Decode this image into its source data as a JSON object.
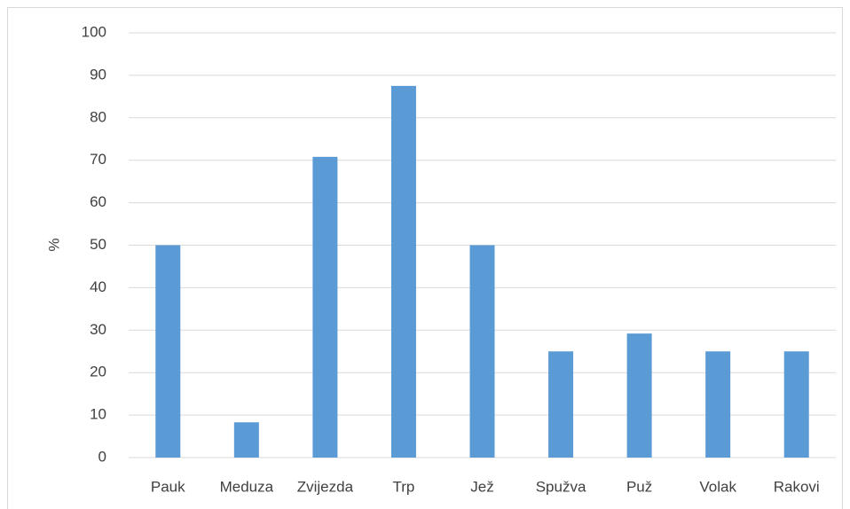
{
  "chart_data": {
    "type": "bar",
    "ylabel": "%",
    "categories": [
      "Pauk",
      "Meduza",
      "Zvijezda",
      "Trp",
      "Jež",
      "Spužva",
      "Puž",
      "Volak",
      "Rakovi"
    ],
    "values": [
      50,
      8.3,
      70.8,
      87.5,
      50,
      25,
      29.2,
      25,
      25
    ],
    "color": "#5b9bd5",
    "ylim": [
      0,
      100
    ],
    "yticks": [
      0,
      10,
      20,
      30,
      40,
      50,
      60,
      70,
      80,
      90,
      100
    ],
    "grid": true
  }
}
